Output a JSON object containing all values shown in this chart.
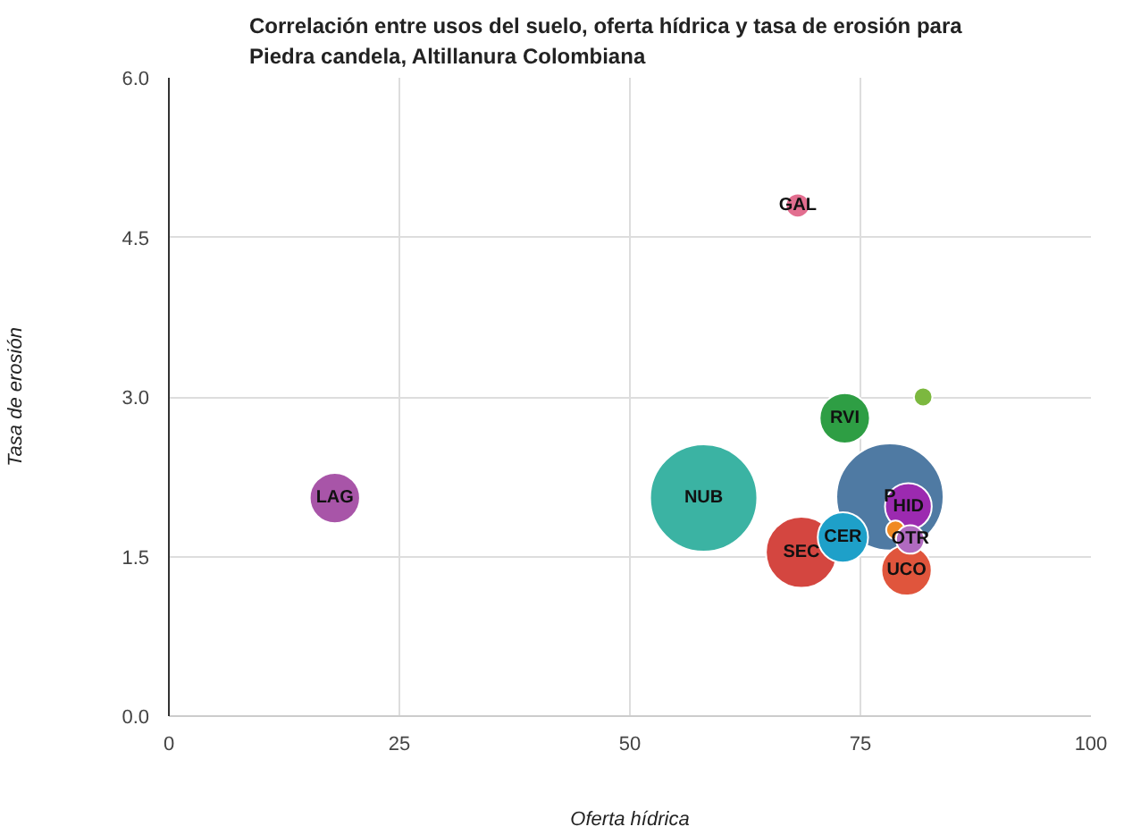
{
  "chart_data": {
    "type": "bubble",
    "title": "Correlación entre usos del suelo, oferta hídrica y tasa de erosión para\nPiedra candela, Altillanura Colombiana",
    "xlabel": "Oferta hídrica",
    "ylabel": "Tasa de erosión",
    "xlim": [
      0,
      100
    ],
    "xticks": [
      0,
      25,
      50,
      75,
      100
    ],
    "ylim": [
      0,
      6
    ],
    "yticks": [
      {
        "value": 0,
        "label": "0.0"
      },
      {
        "value": 1.5,
        "label": "1.5"
      },
      {
        "value": 3,
        "label": "3.0"
      },
      {
        "value": 4.5,
        "label": "4.5"
      },
      {
        "value": 6,
        "label": "6.0"
      }
    ],
    "grid": true,
    "series": [
      {
        "name": "LAG",
        "color": "#a855a8",
        "x": [
          18.0
        ],
        "values": [
          2.05
        ],
        "sizes": [
          0.22
        ]
      },
      {
        "name": "NUB",
        "color": "#3bb3a3",
        "x": [
          58.0
        ],
        "values": [
          2.05
        ],
        "sizes": [
          1
        ]
      },
      {
        "name": "GAL",
        "color": "#e26e8f",
        "x": [
          68.2
        ],
        "values": [
          4.8
        ],
        "sizes": [
          0.05
        ]
      },
      {
        "name": "RVI",
        "color": "#2e9e44",
        "x": [
          73.3
        ],
        "values": [
          2.8
        ],
        "sizes": [
          0.22
        ]
      },
      {
        "color": "#7cb83f",
        "x": [
          81.8
        ],
        "values": [
          3.0
        ],
        "sizes": [
          0.03
        ]
      },
      {
        "name": "P",
        "color": "#4f7aa3",
        "x": [
          78.2
        ],
        "values": [
          2.06
        ],
        "sizes": [
          1
        ]
      },
      {
        "name": "SEC",
        "color": "#d44640",
        "x": [
          68.6
        ],
        "values": [
          1.54
        ],
        "sizes": [
          0.44
        ]
      },
      {
        "name": "CER",
        "color": "#1ea0c9",
        "x": [
          73.1
        ],
        "values": [
          1.68
        ],
        "sizes": [
          0.22
        ]
      },
      {
        "name": "UCO",
        "color": "#e0553c",
        "x": [
          80.0
        ],
        "values": [
          1.37
        ],
        "sizes": [
          0.22
        ]
      },
      {
        "name": "HID",
        "color": "#9c2ab0",
        "x": [
          80.2
        ],
        "values": [
          1.97
        ],
        "sizes": [
          0.19
        ]
      },
      {
        "color": "#f08a24",
        "x": [
          78.8
        ],
        "values": [
          1.75
        ],
        "sizes": [
          0.03
        ]
      },
      {
        "name": "OTR",
        "color": "#b06ac0",
        "x": [
          80.4
        ],
        "values": [
          1.66
        ],
        "sizes": [
          0.07
        ]
      }
    ]
  }
}
